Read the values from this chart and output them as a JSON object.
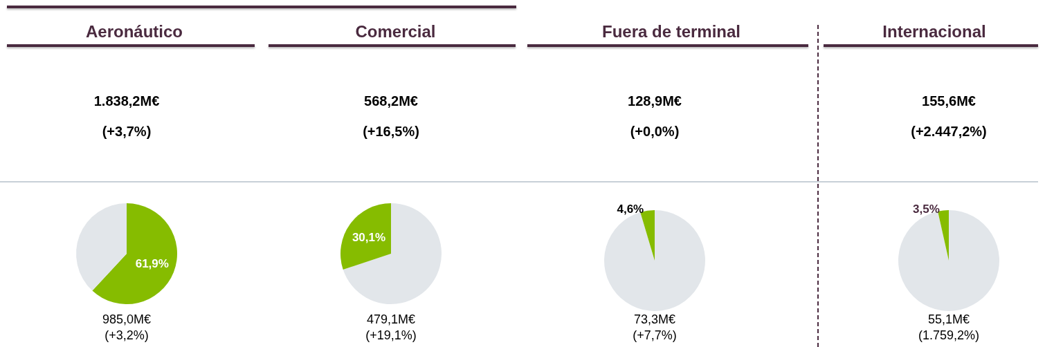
{
  "chart_data": [
    {
      "type": "pie",
      "title": "Aeronáutico",
      "categories": [
        null,
        null
      ],
      "values": [
        61.9,
        38.1
      ],
      "colors": [
        "#86bc00",
        "#e2e6ea"
      ],
      "value_labels": [
        "61,9%",
        null
      ],
      "annotations": [
        "1.838,2M€",
        "(+3,7%)",
        "985,0M€",
        "(+3,2%)"
      ]
    },
    {
      "type": "pie",
      "title": "Comercial",
      "categories": [
        null,
        null
      ],
      "values": [
        69.9,
        30.1
      ],
      "colors": [
        "#e2e6ea",
        "#86bc00"
      ],
      "value_labels": [
        null,
        "30,1%"
      ],
      "annotations": [
        "568,2M€",
        "(+16,5%)",
        "479,1M€",
        "(+19,1%)"
      ]
    },
    {
      "type": "pie",
      "title": "Fuera de terminal",
      "categories": [
        null,
        null
      ],
      "values": [
        95.4,
        4.6
      ],
      "colors": [
        "#e2e6ea",
        "#86bc00"
      ],
      "value_labels": [
        null,
        "4,6%"
      ],
      "annotations": [
        "128,9M€",
        "(+0,0%)",
        "73,3M€",
        "(+7,7%)"
      ]
    },
    {
      "type": "pie",
      "title": "Internacional",
      "categories": [
        null,
        null
      ],
      "values": [
        96.5,
        3.5
      ],
      "colors": [
        "#e2e6ea",
        "#86bc00"
      ],
      "value_labels": [
        null,
        "3,5%"
      ],
      "annotations": [
        "155,6M€",
        "(+2.447,2%)",
        "55,1M€",
        "(1.759,2%)"
      ]
    }
  ]
}
